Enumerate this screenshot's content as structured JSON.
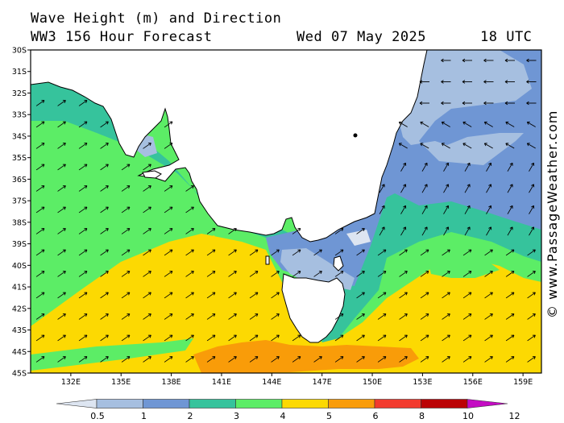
{
  "header": {
    "title": "Wave Height (m) and Direction",
    "model": "WW3 156 Hour Forecast",
    "date": "Wed 07 May 2025",
    "time": "18 UTC"
  },
  "watermark": "© www.PassageWeather.com",
  "map": {
    "lat_labels": [
      "30S",
      "31S",
      "32S",
      "33S",
      "34S",
      "35S",
      "36S",
      "37S",
      "38S",
      "39S",
      "40S",
      "41S",
      "42S",
      "43S",
      "44S",
      "45S"
    ],
    "lon_labels": [
      "132E",
      "135E",
      "138E",
      "141E",
      "144E",
      "147E",
      "150E",
      "153E",
      "156E",
      "159E"
    ],
    "land_color": "#ffffff",
    "coast_color": "#000000",
    "arrow_color": "#000000"
  },
  "legend": {
    "labels": [
      "0.5",
      "1",
      "2",
      "3",
      "4",
      "5",
      "6",
      "8",
      "10",
      "12"
    ],
    "colors": [
      "#dde5f1",
      "#a6bfe0",
      "#6f96d4",
      "#36c39c",
      "#5ced66",
      "#fcd902",
      "#f99c09",
      "#f23a2e",
      "#bb0205",
      "#c40cc3"
    ]
  }
}
